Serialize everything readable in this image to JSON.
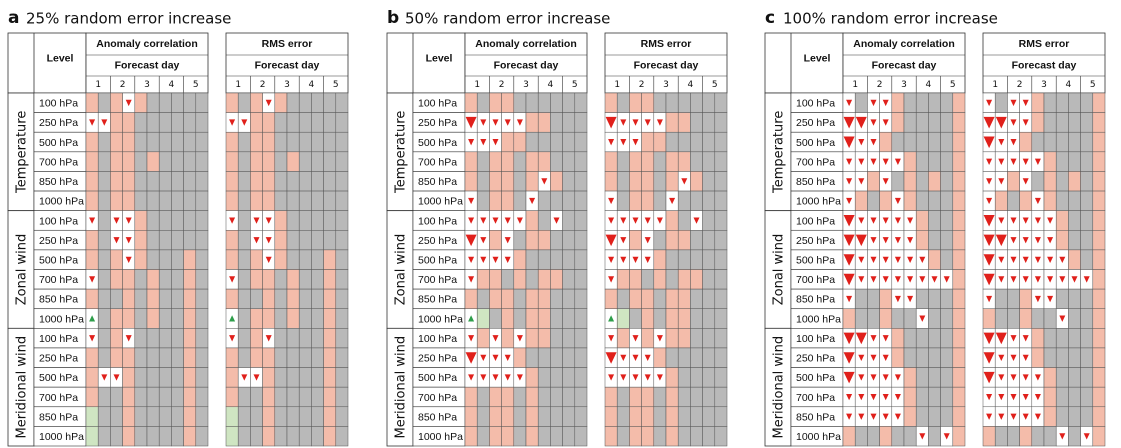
{
  "panels": [
    {
      "label": "a",
      "title": "25% random error increase"
    },
    {
      "label": "b",
      "title": "50% random error increase"
    },
    {
      "label": "c",
      "title": "100% random error increase"
    }
  ],
  "headers": {
    "level": "Level",
    "blocks": [
      "Anomaly correlation",
      "RMS error"
    ],
    "forecast_day": "Forecast day"
  },
  "days": [
    1,
    2,
    3,
    4,
    5
  ],
  "groups": [
    {
      "name": "Temperature",
      "levels": [
        "100 hPa",
        "250 hPa",
        "500 hPa",
        "700 hPa",
        "850 hPa",
        "1000 hPa"
      ]
    },
    {
      "name": "Zonal wind",
      "levels": [
        "100 hPa",
        "250 hPa",
        "500 hPa",
        "700 hPa",
        "850 hPa",
        "1000 hPa"
      ]
    },
    {
      "name": "Meridional wind",
      "levels": [
        "100 hPa",
        "250 hPa",
        "500 hPa",
        "700 hPa",
        "850 hPa",
        "1000 hPa"
      ]
    }
  ]
}
